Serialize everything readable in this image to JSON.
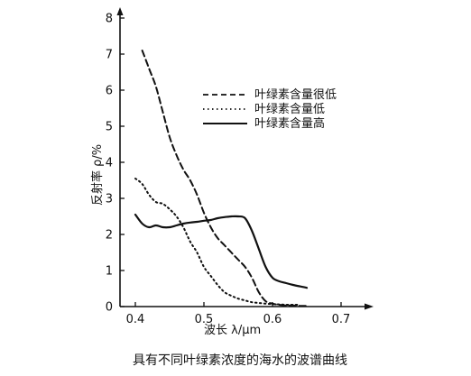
{
  "chart_data": {
    "type": "line",
    "title": "",
    "caption": "具有不同叶绿素浓度的海水的波谱曲线",
    "xlabel": "波长 λ/μm",
    "ylabel": "反射率 ρ/%",
    "xlim": [
      0.38,
      0.72
    ],
    "ylim": [
      0,
      8
    ],
    "xticks": [
      0.4,
      0.5,
      0.6,
      0.7
    ],
    "xtick_labels": [
      "0.4",
      "0.5",
      "0.6",
      "0.7"
    ],
    "yticks": [
      0,
      1,
      2,
      3,
      4,
      5,
      6,
      7,
      8
    ],
    "ytick_labels": [
      "0",
      "1",
      "2",
      "3",
      "4",
      "5",
      "6",
      "7",
      "8"
    ],
    "grid": false,
    "legend_position": "top-right",
    "series": [
      {
        "name": "叶绿素含量很低",
        "style": "dashed",
        "color": "#111111",
        "x": [
          0.41,
          0.42,
          0.43,
          0.44,
          0.45,
          0.46,
          0.47,
          0.48,
          0.49,
          0.5,
          0.51,
          0.52,
          0.53,
          0.54,
          0.55,
          0.56,
          0.57,
          0.58,
          0.59,
          0.6,
          0.61,
          0.62,
          0.63,
          0.64,
          0.65
        ],
        "y": [
          7.1,
          6.6,
          6.1,
          5.4,
          4.7,
          4.2,
          3.8,
          3.5,
          3.1,
          2.6,
          2.2,
          1.9,
          1.7,
          1.5,
          1.3,
          1.1,
          0.8,
          0.4,
          0.15,
          0.08,
          0.05,
          0.03,
          0.03,
          0.02,
          0.02
        ]
      },
      {
        "name": "叶绿素含量低",
        "style": "dotted",
        "color": "#111111",
        "x": [
          0.4,
          0.41,
          0.42,
          0.43,
          0.44,
          0.45,
          0.46,
          0.47,
          0.48,
          0.49,
          0.5,
          0.51,
          0.52,
          0.53,
          0.54,
          0.55,
          0.56,
          0.57,
          0.58,
          0.59,
          0.6,
          0.61,
          0.62,
          0.63,
          0.64
        ],
        "y": [
          3.55,
          3.4,
          3.1,
          2.9,
          2.85,
          2.7,
          2.5,
          2.2,
          1.8,
          1.5,
          1.1,
          0.85,
          0.6,
          0.4,
          0.3,
          0.22,
          0.17,
          0.12,
          0.1,
          0.08,
          0.07,
          0.06,
          0.05,
          0.05,
          0.05
        ]
      },
      {
        "name": "叶绿素含量高",
        "style": "solid",
        "color": "#111111",
        "x": [
          0.4,
          0.41,
          0.42,
          0.43,
          0.44,
          0.45,
          0.46,
          0.47,
          0.48,
          0.49,
          0.5,
          0.51,
          0.52,
          0.53,
          0.54,
          0.55,
          0.56,
          0.57,
          0.58,
          0.59,
          0.6,
          0.61,
          0.62,
          0.63,
          0.64,
          0.65
        ],
        "y": [
          2.55,
          2.3,
          2.2,
          2.25,
          2.2,
          2.2,
          2.25,
          2.3,
          2.33,
          2.35,
          2.38,
          2.4,
          2.45,
          2.48,
          2.5,
          2.5,
          2.45,
          2.1,
          1.6,
          1.1,
          0.8,
          0.7,
          0.65,
          0.6,
          0.56,
          0.52
        ]
      }
    ]
  }
}
